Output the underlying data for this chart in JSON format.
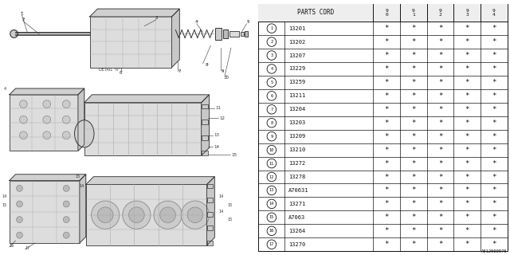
{
  "bg_color": "#ffffff",
  "table_header_parts": "PARTS CORD",
  "year_cols": [
    "9\n0",
    "9\n1",
    "9\n2",
    "9\n3",
    "9\n4"
  ],
  "rows": [
    [
      1,
      "13201",
      "*",
      "*",
      "*",
      "*",
      "*"
    ],
    [
      2,
      "13202",
      "*",
      "*",
      "*",
      "*",
      "*"
    ],
    [
      3,
      "13207",
      "*",
      "*",
      "*",
      "*",
      "*"
    ],
    [
      4,
      "13229",
      "*",
      "*",
      "*",
      "*",
      "*"
    ],
    [
      5,
      "13259",
      "*",
      "*",
      "*",
      "*",
      "*"
    ],
    [
      6,
      "13211",
      "*",
      "*",
      "*",
      "*",
      "*"
    ],
    [
      7,
      "13204",
      "*",
      "*",
      "*",
      "*",
      "*"
    ],
    [
      8,
      "13203",
      "*",
      "*",
      "*",
      "*",
      "*"
    ],
    [
      9,
      "13209",
      "*",
      "*",
      "*",
      "*",
      "*"
    ],
    [
      10,
      "13210",
      "*",
      "*",
      "*",
      "*",
      "*"
    ],
    [
      11,
      "13272",
      "*",
      "*",
      "*",
      "*",
      "*"
    ],
    [
      12,
      "13278",
      "*",
      "*",
      "*",
      "*",
      "*"
    ],
    [
      13,
      "A70631",
      "*",
      "*",
      "*",
      "*",
      "*"
    ],
    [
      14,
      "13271",
      "*",
      "*",
      "*",
      "*",
      "*"
    ],
    [
      15,
      "A7063",
      "*",
      "*",
      "*",
      "*",
      "*"
    ],
    [
      16,
      "13264",
      "*",
      "*",
      "*",
      "*",
      "*"
    ],
    [
      17,
      "13270",
      "*",
      "*",
      "*",
      "*",
      "*"
    ]
  ],
  "footnote": "A012000076",
  "draw_color": "#333333",
  "light_gray": "#d8d8d8",
  "line_color": "#444444"
}
